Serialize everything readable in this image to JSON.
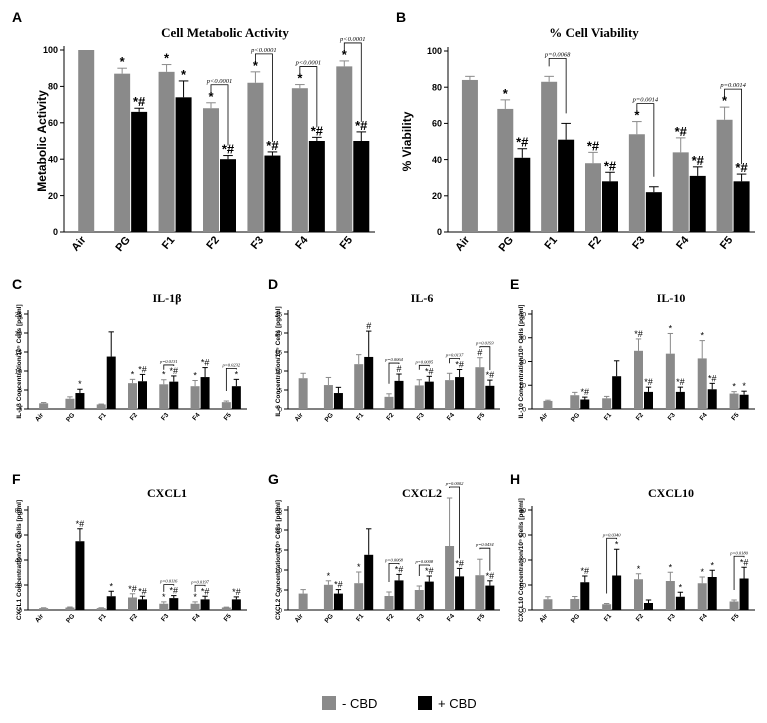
{
  "legend": {
    "items": [
      {
        "label": "- CBD",
        "color": "#8a8a8a"
      },
      {
        "label": "+ CBD",
        "color": "#000000"
      }
    ]
  },
  "colors": {
    "minus_cbd": "#8a8a8a",
    "plus_cbd": "#000000"
  },
  "chart_data": [
    {
      "panel": "A",
      "type": "bar",
      "title": "Cell Metabolic Activity",
      "xlabel": "",
      "ylabel": "Metabolic Activity",
      "categories": [
        "Air",
        "PG",
        "F1",
        "F2",
        "F3",
        "F4",
        "F5"
      ],
      "ylim": [
        0,
        100
      ],
      "yticks": [
        0,
        20,
        40,
        60,
        80,
        100
      ],
      "series": [
        {
          "name": "- CBD",
          "values": [
            100,
            87,
            88,
            68,
            82,
            79,
            91
          ],
          "errors": [
            0,
            3,
            4,
            3,
            6,
            2,
            3
          ],
          "marks": [
            "",
            "*",
            "*",
            "*",
            "*",
            "*",
            "*"
          ]
        },
        {
          "name": "+ CBD",
          "values": [
            null,
            66,
            74,
            40,
            42,
            50,
            50
          ],
          "errors": [
            null,
            2,
            9,
            2,
            2,
            2,
            5
          ],
          "marks": [
            "",
            "*#",
            "*",
            "*#",
            "*#",
            "*#",
            "*#"
          ]
        }
      ],
      "annotations": [
        {
          "text": "p<0.0001",
          "category": "F2"
        },
        {
          "text": "p<0.0001",
          "category": "F3"
        },
        {
          "text": "p<0.0001",
          "category": "F4"
        },
        {
          "text": "p<0.0001",
          "category": "F5"
        }
      ]
    },
    {
      "panel": "B",
      "type": "bar",
      "title": "% Cell Viability",
      "xlabel": "",
      "ylabel": "% Viability",
      "categories": [
        "Air",
        "PG",
        "F1",
        "F2",
        "F3",
        "F4",
        "F5"
      ],
      "ylim": [
        0,
        100
      ],
      "yticks": [
        0,
        20,
        40,
        60,
        80,
        100
      ],
      "series": [
        {
          "name": "- CBD",
          "values": [
            84,
            68,
            83,
            38,
            54,
            44,
            62
          ],
          "errors": [
            2,
            5,
            3,
            6,
            7,
            8,
            7
          ],
          "marks": [
            "",
            "*",
            "",
            "*#",
            "*",
            "*#",
            "*"
          ]
        },
        {
          "name": "+ CBD",
          "values": [
            null,
            41,
            51,
            28,
            22,
            31,
            28
          ],
          "errors": [
            null,
            5,
            9,
            5,
            3,
            5,
            4
          ],
          "marks": [
            "",
            "*#",
            "",
            "*#",
            "",
            "*#",
            "*#"
          ]
        }
      ],
      "annotations": [
        {
          "text": "p=0.0068",
          "category": "F1"
        },
        {
          "text": "p=0.0014",
          "category": "F3"
        },
        {
          "text": "p=0.0014",
          "category": "F5"
        }
      ]
    },
    {
      "panel": "C",
      "type": "bar",
      "title": "IL-1β",
      "xlabel": "",
      "ylabel": "IL-1β Concentration/10⁵ Cells [pg/ml]",
      "categories": [
        "Air",
        "PG",
        "F1",
        "F2",
        "F3",
        "F4",
        "F5"
      ],
      "ylim": [
        0,
        25
      ],
      "yticks": [
        0,
        5,
        10,
        15,
        20,
        25
      ],
      "series": [
        {
          "name": "- CBD",
          "values": [
            1.5,
            2.7,
            1.2,
            6.8,
            6.5,
            6.0,
            1.8
          ],
          "errors": [
            0.2,
            0.5,
            0.1,
            1.0,
            1.2,
            1.5,
            0.3
          ],
          "marks": [
            "",
            "",
            "",
            "*",
            "*",
            "*",
            ""
          ]
        },
        {
          "name": "+ CBD",
          "values": [
            null,
            4.2,
            13.8,
            7.3,
            7.2,
            8.4,
            6.0
          ],
          "errors": [
            null,
            1.0,
            6.5,
            1.8,
            1.5,
            2.5,
            1.8
          ],
          "marks": [
            "",
            "*",
            "",
            "*#",
            "*#",
            "*#",
            "*"
          ]
        }
      ],
      "annotations": [
        {
          "text": "p=0.0131",
          "category": "F3"
        },
        {
          "text": "p=0.0232",
          "category": "F5"
        }
      ]
    },
    {
      "panel": "D",
      "type": "bar",
      "title": "IL-6",
      "xlabel": "",
      "ylabel": "IL-6 Concentration/10⁵ Cells [pg/ml]",
      "categories": [
        "Air",
        "PG",
        "F1",
        "F2",
        "F3",
        "F4",
        "F5"
      ],
      "ylim": [
        0,
        25
      ],
      "yticks": [
        0,
        5,
        10,
        15,
        20,
        25
      ],
      "series": [
        {
          "name": "- CBD",
          "values": [
            8.1,
            6.3,
            11.8,
            3.2,
            6.2,
            7.6,
            11.0
          ],
          "errors": [
            1.3,
            2.0,
            2.5,
            0.8,
            1.5,
            1.8,
            2.5
          ],
          "marks": [
            "",
            "",
            "",
            "",
            "",
            "",
            "#"
          ]
        },
        {
          "name": "+ CBD",
          "values": [
            null,
            4.2,
            13.7,
            7.4,
            7.2,
            8.4,
            6.1
          ],
          "errors": [
            null,
            1.5,
            6.8,
            1.8,
            1.4,
            2.0,
            1.5
          ],
          "marks": [
            "",
            "",
            "#",
            "#",
            "*#",
            "*#",
            "*#"
          ]
        }
      ],
      "annotations": [
        {
          "text": "p=0.0064",
          "category": "F2"
        },
        {
          "text": "p=0.0095",
          "category": "F3"
        },
        {
          "text": "p=0.0137",
          "category": "F4"
        },
        {
          "text": "p=0.0193",
          "category": "F5"
        }
      ]
    },
    {
      "panel": "E",
      "type": "bar",
      "title": "IL-10",
      "xlabel": "",
      "ylabel": "IL-10 Concentration/10⁵ Cells [pg/ml]",
      "categories": [
        "Air",
        "PG",
        "F1",
        "F2",
        "F3",
        "F4",
        "F5"
      ],
      "ylim": [
        0,
        40
      ],
      "yticks": [
        0,
        10,
        20,
        30,
        40
      ],
      "series": [
        {
          "name": "- CBD",
          "values": [
            3.4,
            5.8,
            4.5,
            24.5,
            23.3,
            21.3,
            6.5
          ],
          "errors": [
            0.3,
            1.2,
            0.8,
            5.0,
            8.5,
            7.5,
            0.8
          ],
          "marks": [
            "",
            "",
            "",
            "*#",
            "*",
            "*",
            "*"
          ]
        },
        {
          "name": "+ CBD",
          "values": [
            null,
            4.0,
            13.8,
            7.2,
            7.2,
            8.3,
            6.0
          ],
          "errors": [
            null,
            1.0,
            6.5,
            2.0,
            2.0,
            2.5,
            1.5
          ],
          "marks": [
            "",
            "*#",
            "",
            "*#",
            "*#",
            "*#",
            "*"
          ]
        }
      ],
      "annotations": []
    },
    {
      "panel": "F",
      "type": "bar",
      "title": "CXCL1",
      "xlabel": "",
      "ylabel": "CXCL1 Concentration/10⁴ Cells [pg/ml]",
      "categories": [
        "Air",
        "PG",
        "F1",
        "F2",
        "F3",
        "F4",
        "F5"
      ],
      "ylim": [
        0,
        80
      ],
      "yticks": [
        0,
        20,
        40,
        60,
        80
      ],
      "series": [
        {
          "name": "- CBD",
          "values": [
            1.5,
            2.0,
            1.5,
            10.0,
            5.0,
            5.0,
            2.0
          ],
          "errors": [
            0.3,
            0.4,
            0.3,
            3.0,
            1.5,
            1.5,
            0.3
          ],
          "marks": [
            "",
            "",
            "",
            "*#",
            "*",
            "*",
            ""
          ]
        },
        {
          "name": "+ CBD",
          "values": [
            null,
            55.0,
            11.0,
            8.5,
            9.5,
            8.5,
            8.5
          ],
          "errors": [
            null,
            10.0,
            4.0,
            2.5,
            2.0,
            2.5,
            2.0
          ],
          "marks": [
            "",
            "*#",
            "*",
            "*#",
            "*#",
            "*#",
            "*#"
          ]
        }
      ],
      "annotations": [
        {
          "text": "p=0.0116",
          "category": "F3"
        },
        {
          "text": "p=0.0197",
          "category": "F4"
        }
      ]
    },
    {
      "panel": "G",
      "type": "bar",
      "title": "CXCL2",
      "xlabel": "",
      "ylabel": "CXCL2 Concentration/10⁵ Cells [pg/ml]",
      "categories": [
        "Air",
        "PG",
        "F1",
        "F2",
        "F3",
        "F4",
        "F5"
      ],
      "ylim": [
        0,
        25
      ],
      "yticks": [
        0,
        5,
        10,
        15,
        20,
        25
      ],
      "series": [
        {
          "name": "- CBD",
          "values": [
            4.1,
            6.3,
            6.7,
            3.5,
            5.0,
            16.0,
            8.7
          ],
          "errors": [
            1.0,
            1.0,
            2.8,
            1.0,
            1.0,
            12.0,
            4.0
          ],
          "marks": [
            "",
            "*",
            "*",
            "",
            "",
            "",
            ""
          ]
        },
        {
          "name": "+ CBD",
          "values": [
            null,
            4.1,
            13.8,
            7.4,
            7.1,
            8.4,
            6.1
          ],
          "errors": [
            null,
            1.0,
            6.5,
            1.5,
            1.4,
            2.0,
            1.2
          ],
          "marks": [
            "",
            "*#",
            "",
            "*#",
            "*#",
            "*#",
            "*#"
          ]
        }
      ],
      "annotations": [
        {
          "text": "p=0.0068",
          "category": "F2"
        },
        {
          "text": "p=0.0008",
          "category": "F3"
        },
        {
          "text": "p=0.0002",
          "category": "F4"
        },
        {
          "text": "p=0.0434",
          "category": "F5"
        }
      ]
    },
    {
      "panel": "H",
      "type": "bar",
      "title": "CXCL10",
      "xlabel": "",
      "ylabel": "CXCL10 Concentration/10⁵ Cells [pg/ml]",
      "categories": [
        "Air",
        "PG",
        "F1",
        "F2",
        "F3",
        "F4",
        "F5"
      ],
      "ylim": [
        0,
        40
      ],
      "yticks": [
        0,
        10,
        20,
        30,
        40
      ],
      "series": [
        {
          "name": "- CBD",
          "values": [
            4.3,
            4.4,
            2.3,
            12.3,
            11.6,
            10.7,
            3.4
          ],
          "errors": [
            1.0,
            1.0,
            0.3,
            2.2,
            3.5,
            2.5,
            0.6
          ],
          "marks": [
            "",
            "",
            "",
            "*",
            "*",
            "*",
            ""
          ]
        },
        {
          "name": "+ CBD",
          "values": [
            null,
            11.1,
            13.8,
            2.8,
            5.3,
            13.2,
            12.6
          ],
          "errors": [
            null,
            2.5,
            10.5,
            1.2,
            1.8,
            2.7,
            4.5
          ],
          "marks": [
            "",
            "*#",
            "*",
            "",
            "*",
            "*",
            "*#"
          ]
        }
      ],
      "annotations": [
        {
          "text": "p=0.0340",
          "category": "F1"
        },
        {
          "text": "p=0.0180",
          "category": "F5"
        }
      ]
    }
  ]
}
